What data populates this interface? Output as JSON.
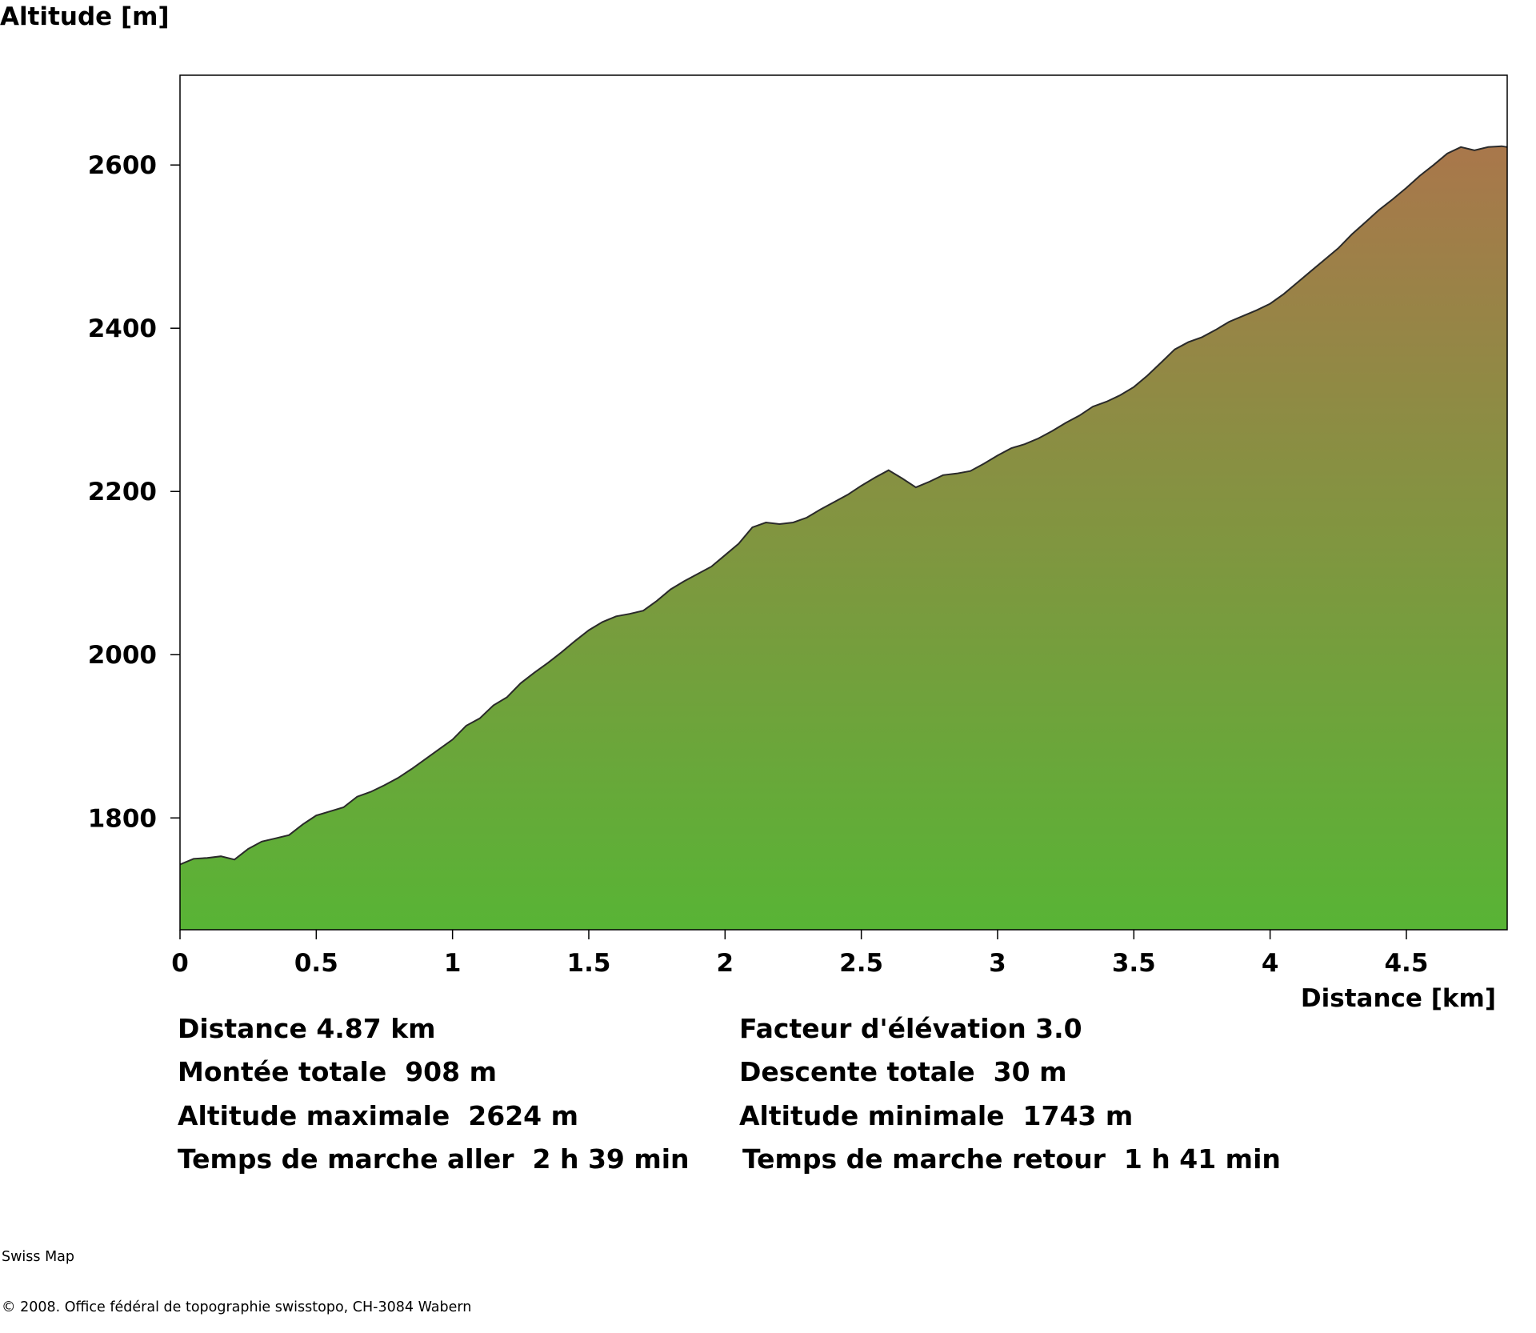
{
  "chart_data": {
    "type": "area",
    "ylabel": "Altitude [m]",
    "xlabel": "Distance [km]",
    "xlim": [
      0,
      4.87
    ],
    "ylim": [
      1663,
      2710
    ],
    "xticks": [
      0,
      0.5,
      1,
      1.5,
      2,
      2.5,
      3,
      3.5,
      4,
      4.5
    ],
    "xtick_labels": [
      "0",
      "0.5",
      "1",
      "1.5",
      "2",
      "2.5",
      "3",
      "3.5",
      "4",
      "4.5"
    ],
    "yticks": [
      1800,
      2000,
      2200,
      2400,
      2600
    ],
    "ytick_labels": [
      "1800",
      "2000",
      "2200",
      "2400",
      "2600"
    ],
    "grid": false,
    "fill_gradient": {
      "bottom": "#58b435",
      "top": "#a9774b"
    },
    "line_color": "#2a2a2a",
    "x": [
      0,
      0.05,
      0.1,
      0.15,
      0.2,
      0.25,
      0.3,
      0.35,
      0.4,
      0.45,
      0.5,
      0.55,
      0.6,
      0.65,
      0.7,
      0.75,
      0.8,
      0.85,
      0.9,
      0.95,
      1.0,
      1.05,
      1.1,
      1.15,
      1.2,
      1.25,
      1.3,
      1.35,
      1.4,
      1.45,
      1.5,
      1.55,
      1.6,
      1.65,
      1.7,
      1.75,
      1.8,
      1.85,
      1.9,
      1.95,
      2.0,
      2.05,
      2.1,
      2.15,
      2.2,
      2.25,
      2.3,
      2.35,
      2.4,
      2.45,
      2.5,
      2.55,
      2.6,
      2.65,
      2.7,
      2.75,
      2.8,
      2.85,
      2.9,
      2.95,
      3.0,
      3.05,
      3.1,
      3.15,
      3.2,
      3.25,
      3.3,
      3.35,
      3.4,
      3.45,
      3.5,
      3.55,
      3.6,
      3.65,
      3.7,
      3.75,
      3.8,
      3.85,
      3.9,
      3.95,
      4.0,
      4.05,
      4.1,
      4.15,
      4.2,
      4.25,
      4.3,
      4.35,
      4.4,
      4.45,
      4.5,
      4.55,
      4.6,
      4.65,
      4.7,
      4.75,
      4.8,
      4.85,
      4.87
    ],
    "y": [
      1743,
      1750,
      1751,
      1753,
      1749,
      1762,
      1771,
      1775,
      1779,
      1792,
      1803,
      1808,
      1813,
      1826,
      1832,
      1840,
      1849,
      1860,
      1872,
      1884,
      1896,
      1913,
      1922,
      1938,
      1948,
      1965,
      1978,
      1990,
      2003,
      2017,
      2030,
      2040,
      2047,
      2050,
      2054,
      2066,
      2080,
      2090,
      2099,
      2108,
      2122,
      2136,
      2156,
      2162,
      2160,
      2162,
      2168,
      2178,
      2187,
      2196,
      2207,
      2217,
      2226,
      2216,
      2205,
      2212,
      2220,
      2222,
      2225,
      2234,
      2244,
      2253,
      2258,
      2265,
      2274,
      2284,
      2293,
      2304,
      2310,
      2318,
      2328,
      2342,
      2358,
      2374,
      2383,
      2389,
      2398,
      2408,
      2415,
      2422,
      2430,
      2442,
      2456,
      2470,
      2484,
      2498,
      2515,
      2530,
      2545,
      2558,
      2572,
      2587,
      2600,
      2614,
      2622,
      2618,
      2622,
      2623,
      2622
    ]
  },
  "stats": {
    "distance": "Distance 4.87 km",
    "elevation_factor": "Facteur d'élévation 3.0",
    "total_ascent": "Montée totale  908 m",
    "total_descent": "Descente totale  30 m",
    "max_altitude": "Altitude maximale  2624 m",
    "min_altitude": "Altitude minimale  1743 m",
    "walk_time_out": "Temps de marche aller  2 h 39 min",
    "walk_time_back": "Temps de marche retour  1 h 41 min"
  },
  "credits": {
    "line1": "Swiss Map",
    "line2": "© 2008. Office fédéral de topographie swisstopo, CH-3084 Wabern"
  }
}
